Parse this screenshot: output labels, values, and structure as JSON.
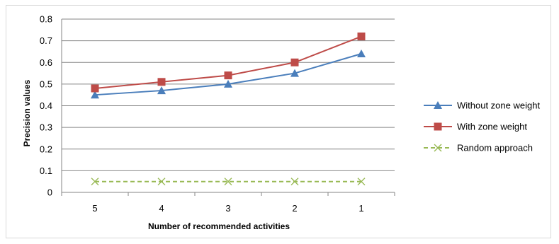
{
  "chart_data": {
    "type": "line",
    "title": "",
    "xlabel": "Number of recommended activities",
    "ylabel": "Precision values",
    "categories": [
      "5",
      "4",
      "3",
      "2",
      "1"
    ],
    "ylim": [
      0,
      0.8
    ],
    "yticks": [
      "0",
      "0.1",
      "0.2",
      "0.3",
      "0.4",
      "0.5",
      "0.6",
      "0.7",
      "0.8"
    ],
    "grid": "horizontal",
    "legend_position": "right",
    "series": [
      {
        "name": "Without zone weight",
        "values": [
          0.45,
          0.47,
          0.5,
          0.55,
          0.64
        ],
        "color": "#4a7ebb",
        "marker": "triangle",
        "dash": "solid"
      },
      {
        "name": "With zone weight",
        "values": [
          0.48,
          0.51,
          0.54,
          0.6,
          0.72
        ],
        "color": "#be4b48",
        "marker": "square",
        "dash": "solid"
      },
      {
        "name": "Random approach",
        "values": [
          0.05,
          0.05,
          0.05,
          0.05,
          0.05
        ],
        "color": "#98b954",
        "marker": "x",
        "dash": "dashed"
      }
    ]
  }
}
